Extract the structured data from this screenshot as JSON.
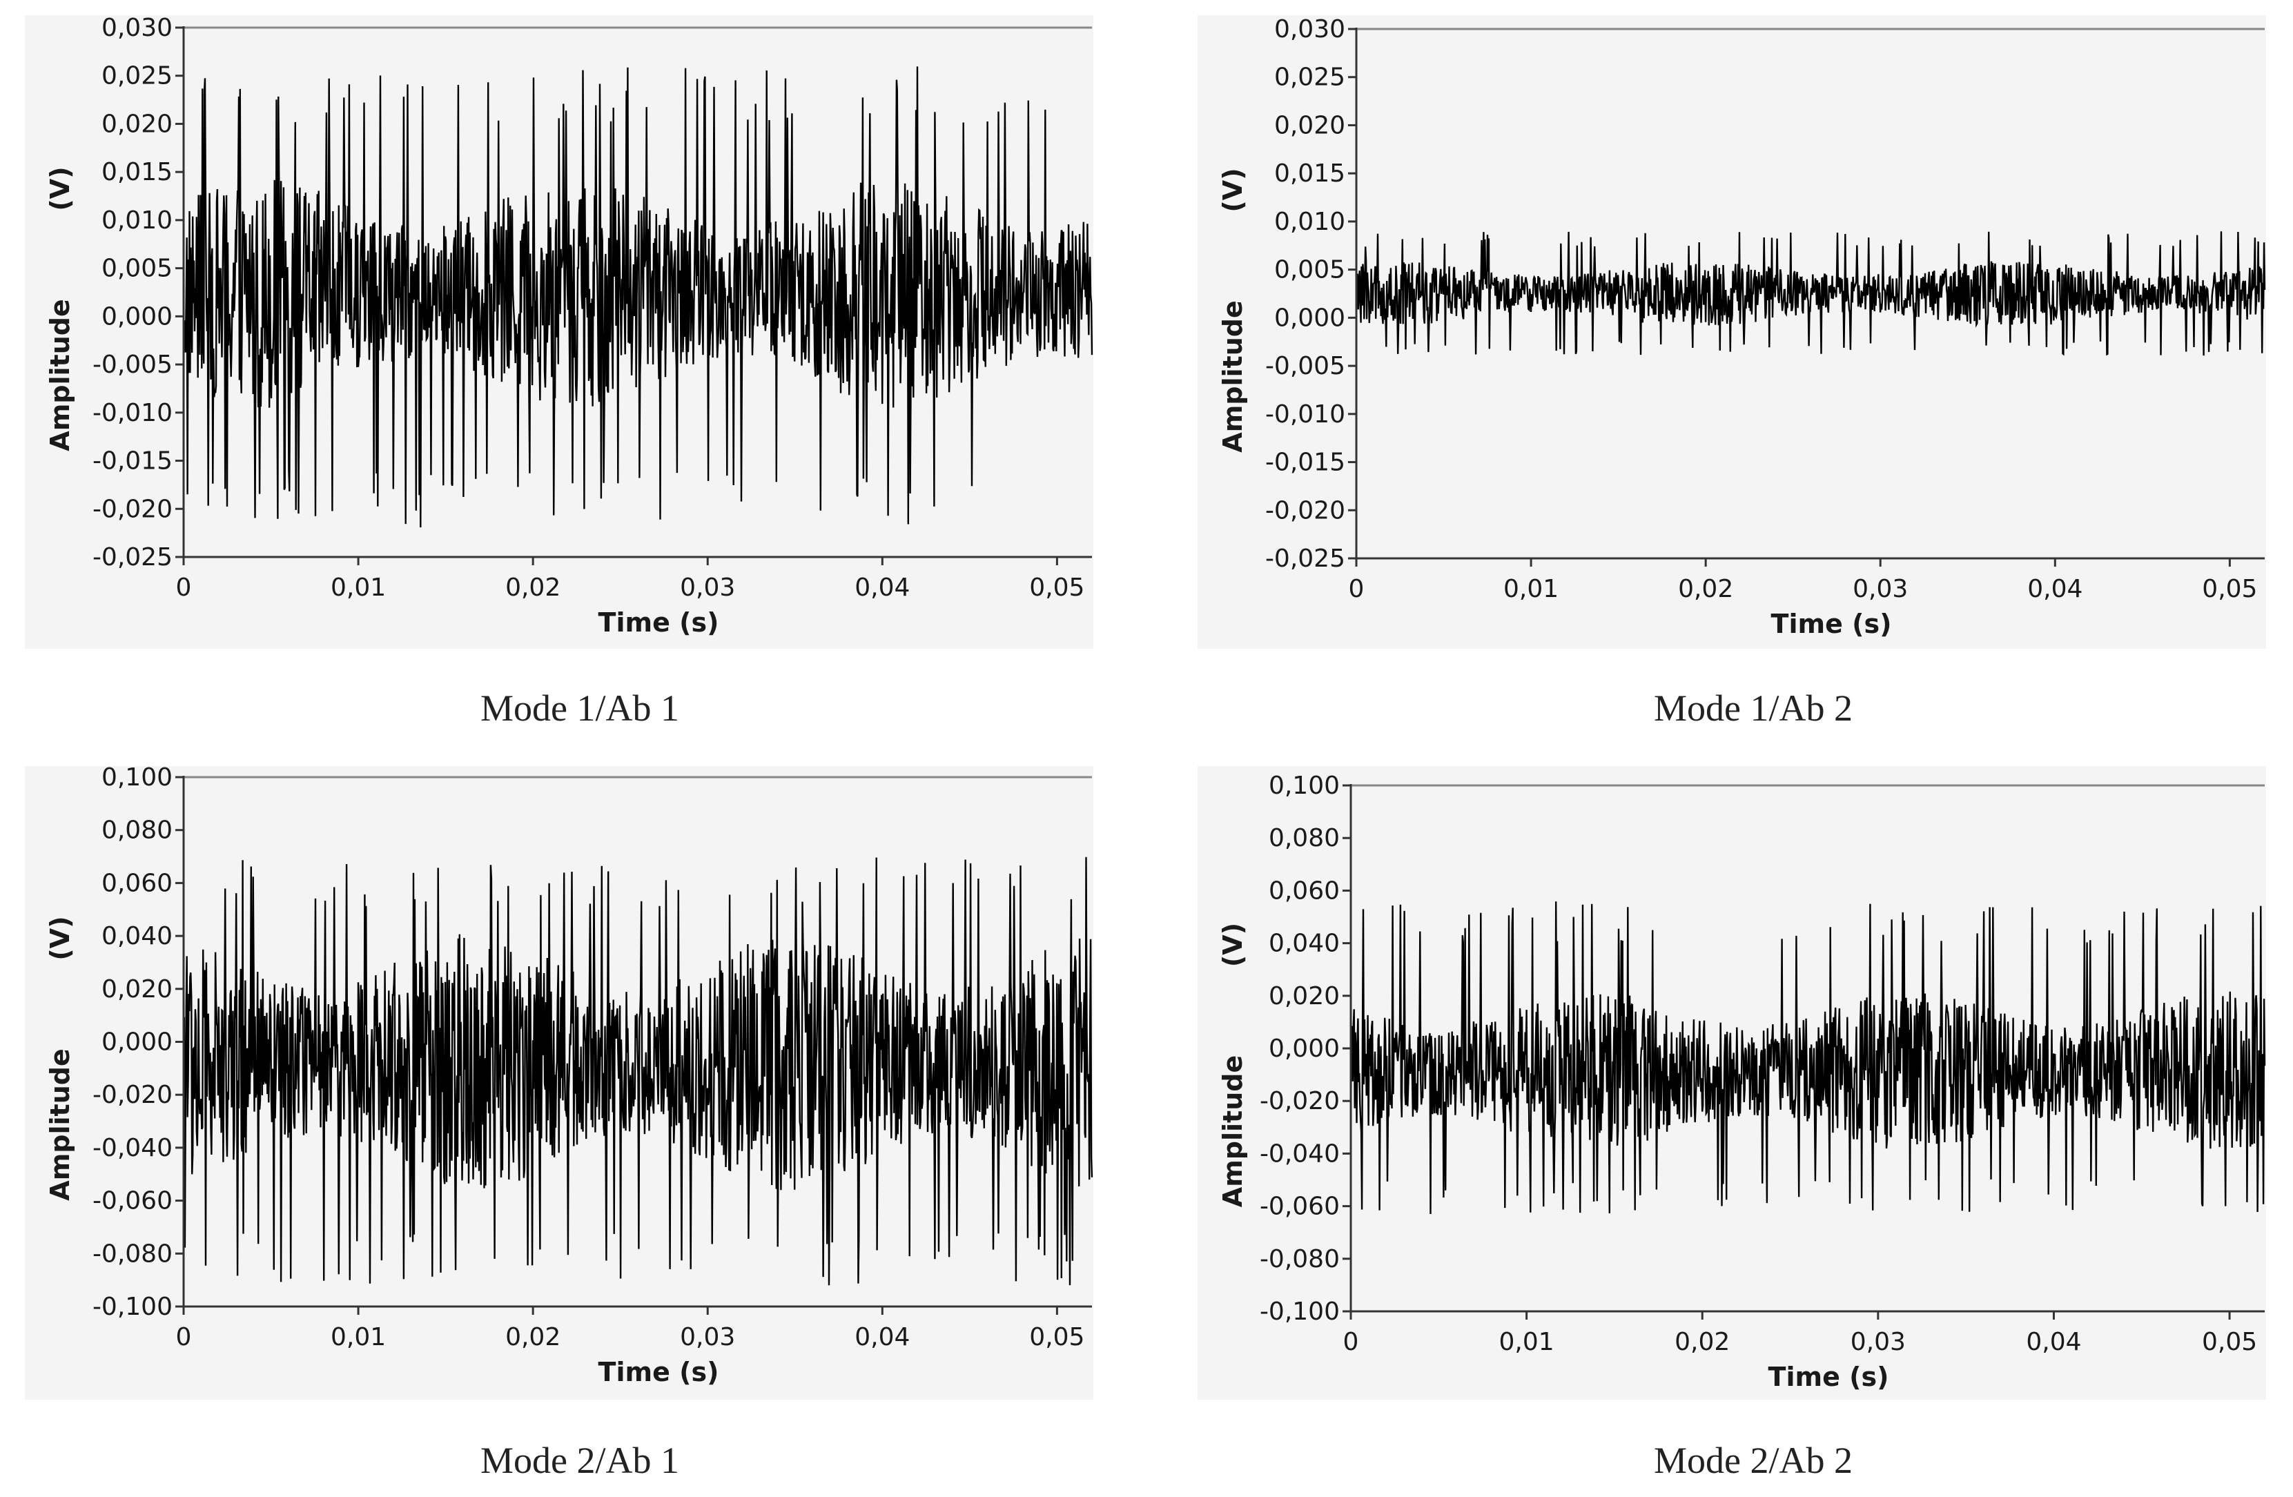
{
  "chart_data": [
    {
      "type": "line",
      "title": "Mode 1/Ab 1",
      "xlabel": "Time (s)",
      "ylabel": "Amplitude    (V)",
      "ylabel_parts": [
        "Amplitude",
        "(V)"
      ],
      "xlim": [
        0,
        0.052
      ],
      "ylim": [
        -0.025,
        0.03
      ],
      "x_ticks": [
        0,
        0.01,
        0.02,
        0.03,
        0.04,
        0.05
      ],
      "x_tick_labels": [
        "0",
        "0,01",
        "0,02",
        "0,03",
        "0,04",
        "0,05"
      ],
      "y_ticks": [
        0.03,
        0.025,
        0.02,
        0.015,
        0.01,
        0.005,
        0.0,
        -0.005,
        -0.01,
        -0.015,
        -0.02,
        -0.025
      ],
      "y_tick_labels": [
        "0,030",
        "0,025",
        "0,020",
        "0,015",
        "0,010",
        "0,005",
        "0,000",
        "-0,005",
        "-0,010",
        "-0,015",
        "-0,020",
        "-0,025"
      ],
      "grid": false,
      "legend": "none",
      "series": [
        {
          "signal": "noise",
          "mean": 0.002,
          "band_low": -0.008,
          "band_high": 0.013,
          "max": 0.026,
          "min": -0.022,
          "color": "#000000"
        }
      ]
    },
    {
      "type": "line",
      "title": "Mode 1/Ab 2",
      "xlabel": "Time (s)",
      "ylabel": "Amplitude    (V)",
      "ylabel_parts": [
        "Amplitude",
        "(V)"
      ],
      "xlim": [
        0,
        0.052
      ],
      "ylim": [
        -0.025,
        0.03
      ],
      "x_ticks": [
        0,
        0.01,
        0.02,
        0.03,
        0.04,
        0.05
      ],
      "x_tick_labels": [
        "0",
        "0,01",
        "0,02",
        "0,03",
        "0,04",
        "0,05"
      ],
      "y_ticks": [
        0.03,
        0.025,
        0.02,
        0.015,
        0.01,
        0.005,
        0.0,
        -0.005,
        -0.01,
        -0.015,
        -0.02,
        -0.025
      ],
      "y_tick_labels": [
        "0,030",
        "0,025",
        "0,020",
        "0,015",
        "0,010",
        "0,005",
        "0,000",
        "-0,005",
        "-0,010",
        "-0,015",
        "-0,020",
        "-0,025"
      ],
      "grid": false,
      "legend": "none",
      "series": [
        {
          "signal": "noise",
          "mean": 0.0025,
          "band_low": -0.0005,
          "band_high": 0.0055,
          "max": 0.009,
          "min": -0.004,
          "color": "#000000"
        }
      ]
    },
    {
      "type": "line",
      "title": "Mode 2/Ab 1",
      "xlabel": "Time (s)",
      "ylabel": "Amplitude    (V)",
      "ylabel_parts": [
        "Amplitude",
        "(V)"
      ],
      "xlim": [
        0,
        0.052
      ],
      "ylim": [
        -0.1,
        0.1
      ],
      "x_ticks": [
        0,
        0.01,
        0.02,
        0.03,
        0.04,
        0.05
      ],
      "x_tick_labels": [
        "0",
        "0,01",
        "0,02",
        "0,03",
        "0,04",
        "0,05"
      ],
      "y_ticks": [
        0.1,
        0.08,
        0.06,
        0.04,
        0.02,
        0.0,
        -0.02,
        -0.04,
        -0.06,
        -0.08,
        -0.1
      ],
      "y_tick_labels": [
        "0,100",
        "0,080",
        "0,060",
        "0,040",
        "0,020",
        "0,000",
        "-0,020",
        "-0,040",
        "-0,060",
        "-0,080",
        "-0,100"
      ],
      "grid": false,
      "legend": "none",
      "series": [
        {
          "signal": "noise",
          "mean": -0.008,
          "band_low": -0.05,
          "band_high": 0.035,
          "max": 0.07,
          "min": -0.092,
          "color": "#000000"
        }
      ]
    },
    {
      "type": "line",
      "title": "Mode 2/Ab 2",
      "xlabel": "Time (s)",
      "ylabel": "Amplitude    (V)",
      "ylabel_parts": [
        "Amplitude",
        "(V)"
      ],
      "xlim": [
        0,
        0.052
      ],
      "ylim": [
        -0.1,
        0.1
      ],
      "x_ticks": [
        0,
        0.01,
        0.02,
        0.03,
        0.04,
        0.05
      ],
      "x_tick_labels": [
        "0",
        "0,01",
        "0,02",
        "0,03",
        "0,04",
        "0,05"
      ],
      "y_ticks": [
        0.1,
        0.08,
        0.06,
        0.04,
        0.02,
        0.0,
        -0.02,
        -0.04,
        -0.06,
        -0.08,
        -0.1
      ],
      "y_tick_labels": [
        "0,100",
        "0,080",
        "0,060",
        "0,040",
        "0,020",
        "0,000",
        "-0,020",
        "-0,040",
        "-0,060",
        "-0,080",
        "-0,100"
      ],
      "grid": false,
      "legend": "none",
      "series": [
        {
          "signal": "noise",
          "mean": -0.01,
          "band_low": -0.035,
          "band_high": 0.018,
          "max": 0.056,
          "min": -0.063,
          "color": "#000000"
        }
      ]
    }
  ]
}
